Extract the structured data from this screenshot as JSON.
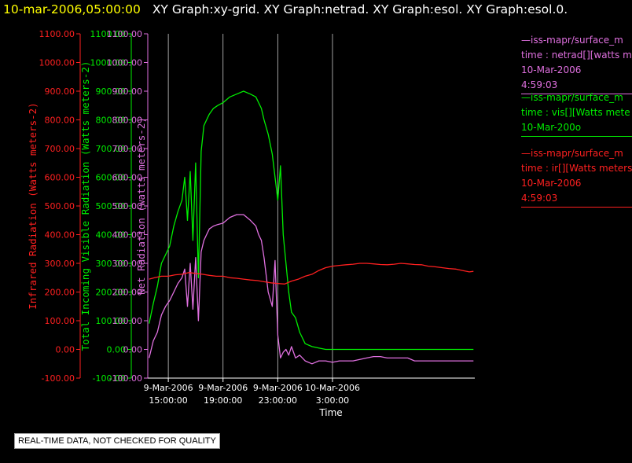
{
  "header": {
    "timestamp": "10-mar-2006,05:00:00",
    "graphs": "XY Graph:xy-grid.  XY Graph:netrad.  XY Graph:esol.  XY Graph:esol.0."
  },
  "legend": [
    {
      "color": "#e070e0",
      "lines": [
        "—iss-mapr/surface_m",
        "time : netrad[][watts me",
        "10-Mar-2006",
        "4:59:03"
      ]
    },
    {
      "color": "#00ee00",
      "lines": [
        "—iss-mapr/surface_m",
        "time : vis[][Watts mete",
        "10-Mar-200o"
      ]
    },
    {
      "color": "#ff2020",
      "lines": [
        "—iss-mapr/surface_m",
        "time : ir[][Watts meters",
        "10-Mar-2006",
        "4:59:03"
      ]
    }
  ],
  "notice": "REAL-TIME DATA, NOT CHECKED FOR QUALITY",
  "chart_data": {
    "type": "line",
    "xlabel": "Time",
    "xlim": [
      13.5,
      37.4
    ],
    "x_unit": "hours since 9-Mar-2006 00:00",
    "x_ticks": [
      {
        "x": 15,
        "line1": "9-Mar-2006",
        "line2": "15:00:00"
      },
      {
        "x": 19,
        "line1": "9-Mar-2006",
        "line2": "19:00:00"
      },
      {
        "x": 23,
        "line1": "9-Mar-2006",
        "line2": "23:00:00"
      },
      {
        "x": 27,
        "line1": "10-Mar-2006",
        "line2": "3:00:00"
      }
    ],
    "grid": "vertical",
    "y_ticks": [
      "-100.00",
      "0.00",
      "100.00",
      "200.00",
      "300.00",
      "400.00",
      "500.00",
      "600.00",
      "700.00",
      "800.00",
      "900.00",
      "1000.00",
      "1100.00"
    ],
    "ylim": [
      -100,
      1100
    ],
    "axes": [
      {
        "label": "Infrared Radiation (Watts meters-2)",
        "color": "#ff2020"
      },
      {
        "label": "Total Incoming Visible Radiation (Watts meters-2)",
        "color": "#00ee00"
      },
      {
        "label": "Net Radiation (watts meters-2)",
        "color": "#e070e0"
      }
    ],
    "series": [
      {
        "color": "#00ee00",
        "x": [
          13.6,
          13.9,
          14.2,
          14.5,
          14.8,
          15.1,
          15.4,
          15.7,
          16.0,
          16.2,
          16.4,
          16.6,
          16.8,
          17.0,
          17.2,
          17.4,
          17.6,
          17.8,
          18.0,
          18.3,
          18.6,
          19.0,
          19.5,
          20.0,
          20.5,
          21.0,
          21.4,
          21.6,
          21.8,
          22.0,
          22.3,
          22.6,
          22.8,
          23.0,
          23.2,
          23.4,
          23.6,
          23.8,
          24.0,
          24.3,
          24.6,
          25.0,
          25.5,
          26.0,
          26.5,
          27.0,
          27.5,
          28.0,
          28.5,
          29.0,
          29.5,
          30.0,
          30.5,
          31.0,
          31.5,
          32.0,
          32.5,
          33.0,
          33.5,
          34.0,
          34.5,
          35.0,
          35.5,
          36.0,
          36.5,
          37.0,
          37.3
        ],
        "y": [
          90,
          160,
          220,
          300,
          330,
          360,
          430,
          480,
          520,
          600,
          450,
          620,
          380,
          650,
          250,
          690,
          780,
          800,
          820,
          840,
          850,
          860,
          880,
          890,
          900,
          890,
          880,
          860,
          840,
          800,
          750,
          680,
          600,
          520,
          640,
          400,
          300,
          200,
          130,
          110,
          60,
          20,
          10,
          5,
          0,
          0,
          0,
          0,
          0,
          0,
          0,
          0,
          0,
          0,
          0,
          0,
          0,
          0,
          0,
          0,
          0,
          0,
          0,
          0,
          0,
          0,
          0
        ]
      },
      {
        "color": "#e070e0",
        "x": [
          13.6,
          13.9,
          14.2,
          14.5,
          14.8,
          15.1,
          15.4,
          15.7,
          16.0,
          16.2,
          16.4,
          16.6,
          16.8,
          17.0,
          17.2,
          17.4,
          17.6,
          17.8,
          18.0,
          18.3,
          18.6,
          19.0,
          19.5,
          20.0,
          20.5,
          21.0,
          21.4,
          21.6,
          21.8,
          22.0,
          22.3,
          22.6,
          22.8,
          23.0,
          23.2,
          23.4,
          23.6,
          23.8,
          24.0,
          24.3,
          24.6,
          25.0,
          25.5,
          26.0,
          26.5,
          27.0,
          27.5,
          28.0,
          28.5,
          29.0,
          29.5,
          30.0,
          30.5,
          31.0,
          31.5,
          32.0,
          32.5,
          33.0,
          33.5,
          34.0,
          34.5,
          35.0,
          35.5,
          36.0,
          36.5,
          37.0,
          37.3
        ],
        "y": [
          -30,
          30,
          60,
          120,
          150,
          170,
          200,
          230,
          250,
          280,
          150,
          300,
          140,
          320,
          100,
          340,
          380,
          400,
          420,
          430,
          435,
          440,
          460,
          470,
          470,
          450,
          430,
          400,
          380,
          320,
          200,
          150,
          310,
          50,
          -30,
          -10,
          0,
          -20,
          10,
          -30,
          -20,
          -40,
          -50,
          -40,
          -40,
          -45,
          -40,
          -40,
          -40,
          -35,
          -30,
          -25,
          -25,
          -30,
          -30,
          -30,
          -30,
          -40,
          -40,
          -40,
          -40,
          -40,
          -40,
          -40,
          -40,
          -40,
          -40
        ]
      },
      {
        "color": "#ff2020",
        "x": [
          13.6,
          14.0,
          14.5,
          15.0,
          15.5,
          16.0,
          16.5,
          17.0,
          17.5,
          18.0,
          18.5,
          19.0,
          19.5,
          20.0,
          20.5,
          21.0,
          21.5,
          22.0,
          22.5,
          23.0,
          23.5,
          24.0,
          24.5,
          25.0,
          25.5,
          26.0,
          26.5,
          27.0,
          27.5,
          28.0,
          28.5,
          29.0,
          29.5,
          30.0,
          30.5,
          31.0,
          31.5,
          32.0,
          32.5,
          33.0,
          33.5,
          34.0,
          34.5,
          35.0,
          35.5,
          36.0,
          36.5,
          37.0,
          37.3
        ],
        "y": [
          245,
          250,
          255,
          255,
          260,
          262,
          268,
          265,
          262,
          258,
          255,
          255,
          250,
          248,
          245,
          242,
          240,
          236,
          232,
          230,
          228,
          238,
          245,
          255,
          262,
          275,
          285,
          290,
          293,
          295,
          297,
          300,
          300,
          298,
          296,
          295,
          297,
          300,
          298,
          296,
          295,
          290,
          288,
          285,
          282,
          280,
          275,
          270,
          272
        ]
      }
    ]
  }
}
